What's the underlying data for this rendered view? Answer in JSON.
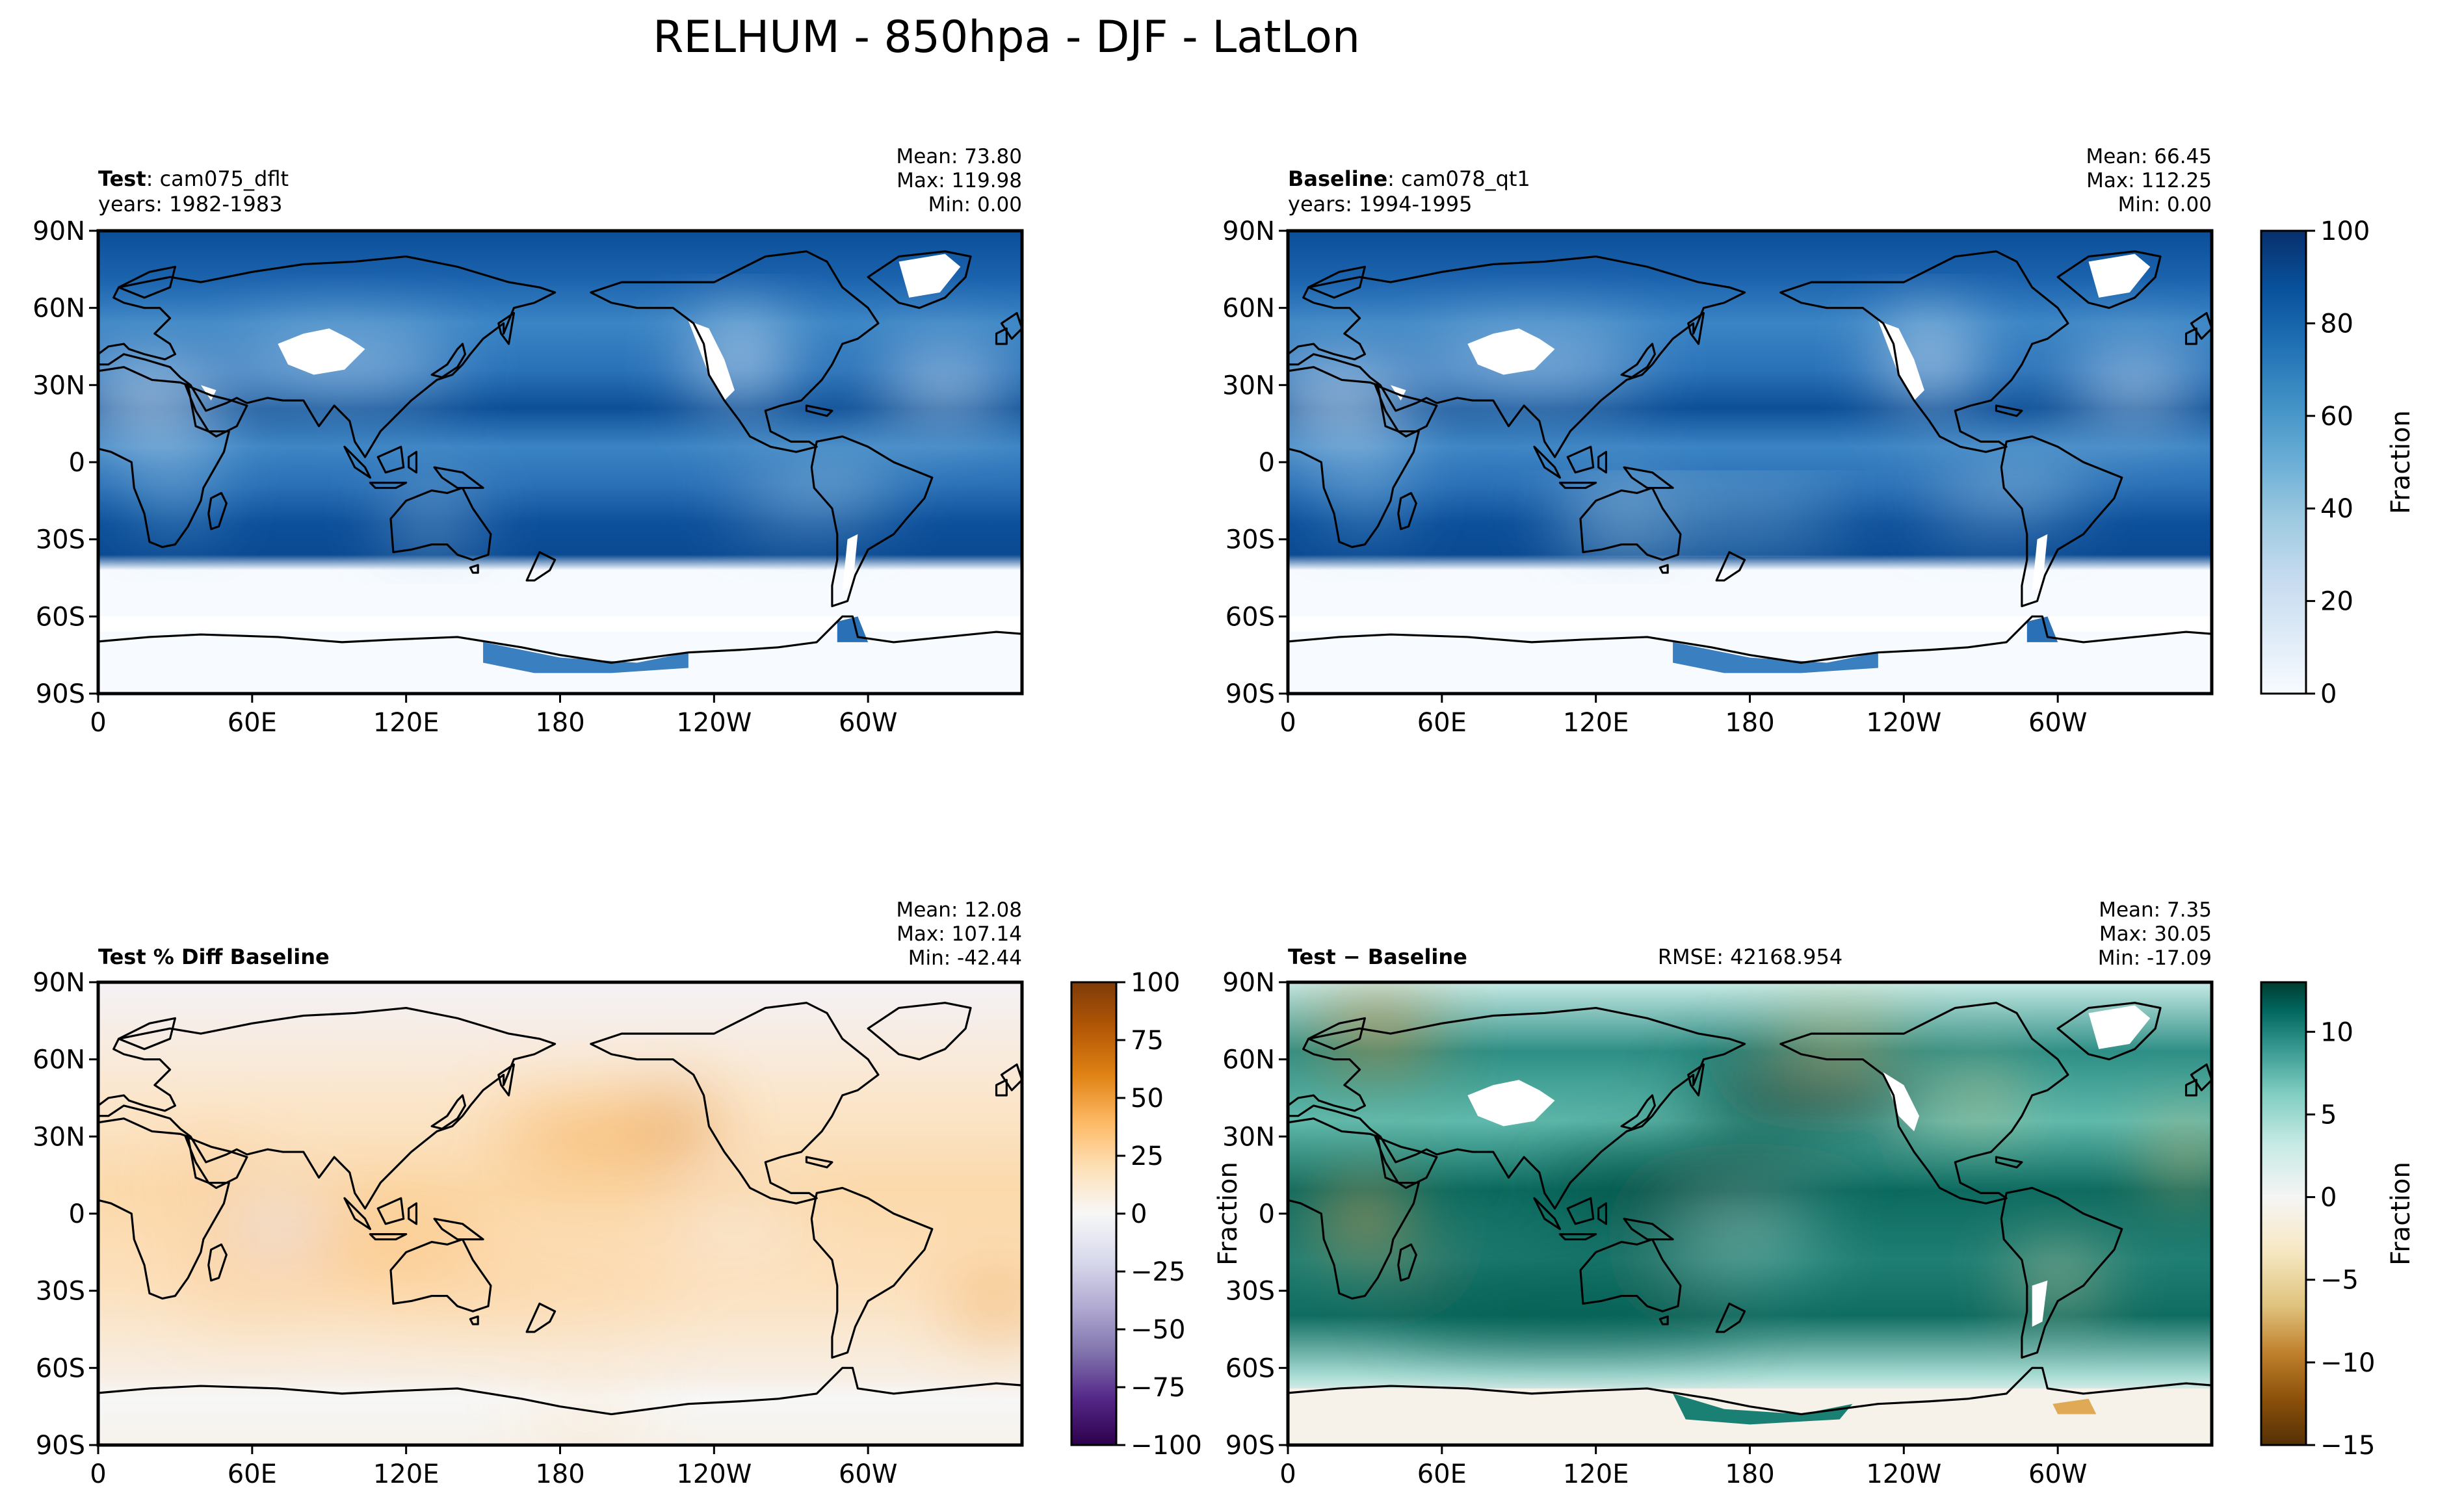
{
  "figure": {
    "title": "RELHUM - 850hpa - DJF - LatLon"
  },
  "chart_data": [
    {
      "type": "heatmap",
      "id": "test",
      "title_bold": "Test",
      "title_rest": ": cam075_dflt",
      "years": "years: 1982-1983",
      "stats": {
        "mean": "Mean: 73.80",
        "max": "Max: 119.98",
        "min": "Min:  0.00"
      },
      "xticks": [
        "0",
        "60E",
        "120E",
        "180",
        "120W",
        "60W"
      ],
      "yticks": [
        "90N",
        "60N",
        "30N",
        "0",
        "30S",
        "60S",
        "90S"
      ],
      "xlim": [
        0,
        360
      ],
      "ylim": [
        -90,
        90
      ],
      "colormap": "Blues",
      "vmin": 0,
      "vmax": 100
    },
    {
      "type": "heatmap",
      "id": "baseline",
      "title_bold": "Baseline",
      "title_rest": ": cam078_qt1",
      "years": "years: 1994-1995",
      "stats": {
        "mean": "Mean: 66.45",
        "max": "Max: 112.25",
        "min": "Min:  0.00"
      },
      "xticks": [
        "0",
        "60E",
        "120E",
        "180",
        "120W",
        "60W"
      ],
      "yticks": [
        "90N",
        "60N",
        "30N",
        "0",
        "30S",
        "60S",
        "90S"
      ],
      "xlim": [
        0,
        360
      ],
      "ylim": [
        -90,
        90
      ],
      "colormap": "Blues",
      "vmin": 0,
      "vmax": 100,
      "colorbar": {
        "label": "Fraction",
        "ticks": [
          "100",
          "80",
          "60",
          "40",
          "20",
          "0"
        ]
      }
    },
    {
      "type": "heatmap",
      "id": "pctdiff",
      "title_bold": "Test % Diff Baseline",
      "stats": {
        "mean": "Mean: 12.08",
        "max": "Max: 107.14",
        "min": "Min: -42.44"
      },
      "xticks": [
        "0",
        "60E",
        "120E",
        "180",
        "120W",
        "60W"
      ],
      "yticks": [
        "90N",
        "60N",
        "30N",
        "0",
        "30S",
        "60S",
        "90S"
      ],
      "xlim": [
        0,
        360
      ],
      "ylim": [
        -90,
        90
      ],
      "colormap": "PuOr",
      "vmin": -100,
      "vmax": 100,
      "colorbar": {
        "label": "",
        "ticks": [
          "100",
          "75",
          "50",
          "25",
          "0",
          "−25",
          "−50",
          "−75",
          "−100"
        ]
      }
    },
    {
      "type": "heatmap",
      "id": "diff",
      "title_bold": "Test − Baseline",
      "rmse": "RMSE: 42168.954",
      "ylabel": "Fraction",
      "stats": {
        "mean": "Mean:  7.35",
        "max": "Max: 30.05",
        "min": "Min: -17.09"
      },
      "xticks": [
        "0",
        "60E",
        "120E",
        "180",
        "120W",
        "60W"
      ],
      "yticks": [
        "90N",
        "60N",
        "30N",
        "0",
        "30S",
        "60S",
        "90S"
      ],
      "xlim": [
        0,
        360
      ],
      "ylim": [
        -90,
        90
      ],
      "colormap": "BrBG",
      "vmin": -15,
      "vmax": 13,
      "colorbar": {
        "label": "Fraction",
        "ticks": [
          "10",
          "5",
          "0",
          "−5",
          "−10",
          "−15"
        ]
      }
    }
  ]
}
